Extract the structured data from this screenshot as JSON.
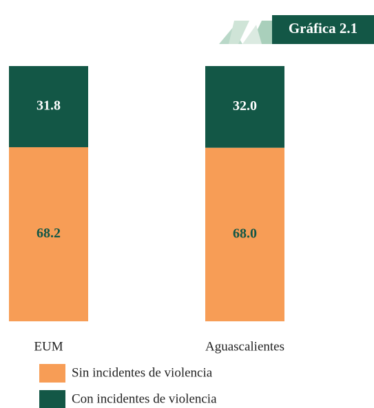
{
  "chart_data": {
    "type": "stacked-bar",
    "title": "Gráfica 2.1",
    "categories": [
      "EUM",
      "Aguascalientes"
    ],
    "series": [
      {
        "name": "Sin incidentes de violencia",
        "color": "#f79d56",
        "values": [
          68.2,
          68.0
        ],
        "value_labels": [
          "68.2",
          "68.0"
        ],
        "label_color": "#135746"
      },
      {
        "name": "Con incidentes de violencia",
        "color": "#135746",
        "values": [
          31.8,
          32.0
        ],
        "value_labels": [
          "31.8",
          "32.0"
        ],
        "label_color": "#ffffff"
      }
    ]
  }
}
